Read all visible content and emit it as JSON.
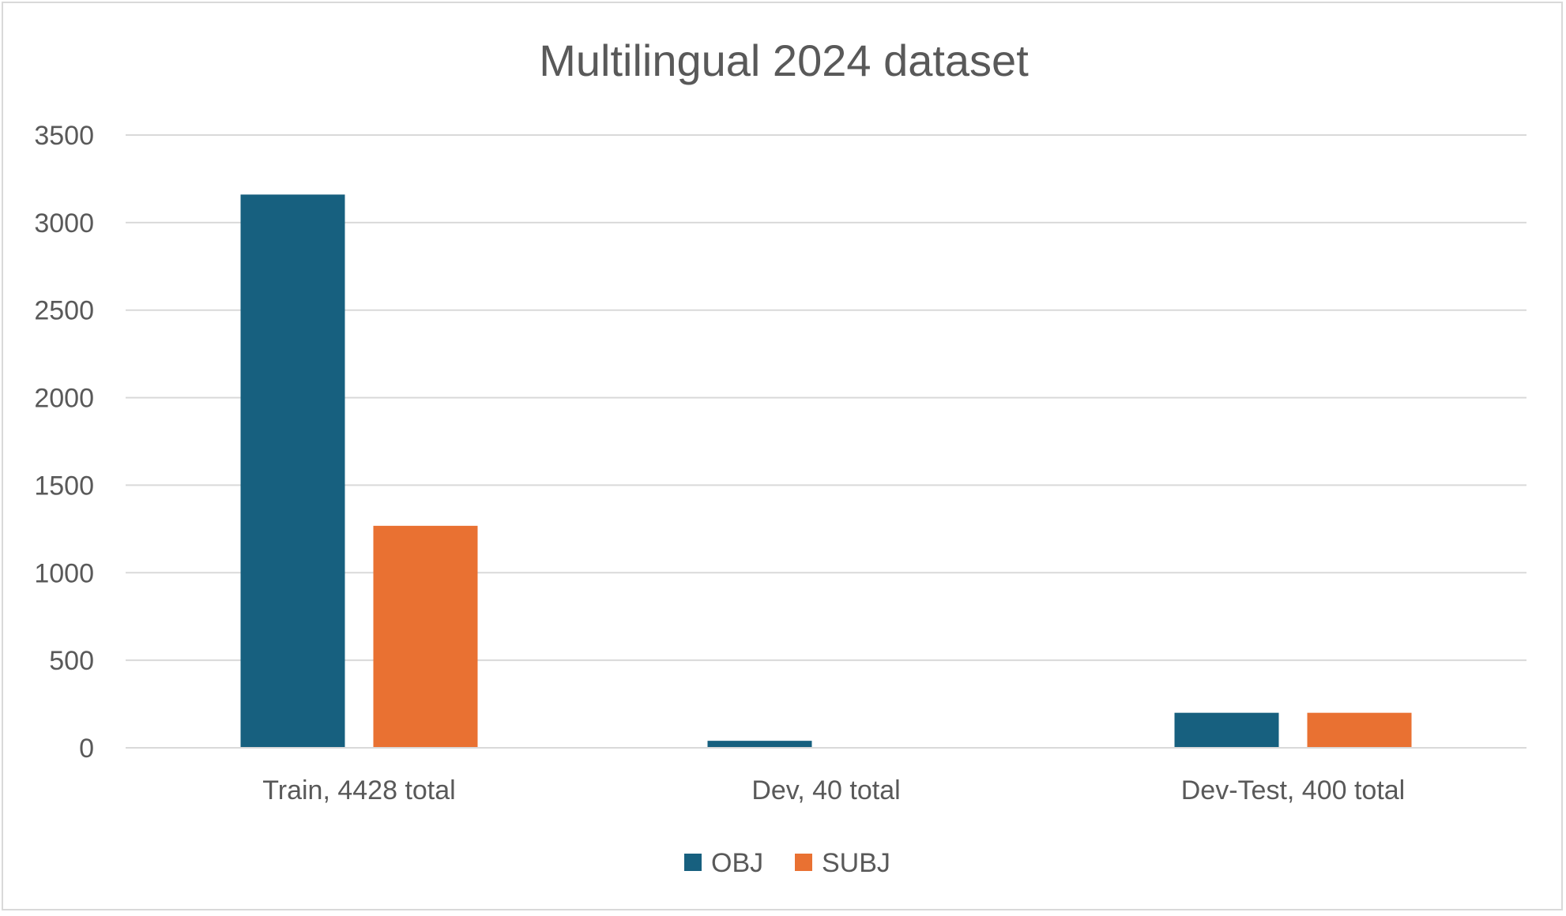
{
  "chart_data": {
    "type": "bar",
    "title": "Multilingual 2024 dataset",
    "xlabel": "",
    "ylabel": "",
    "categories": [
      "Train, 4428 total",
      "Dev, 40 total",
      "Dev-Test, 400 total"
    ],
    "series": [
      {
        "name": "OBJ",
        "values": [
          3160,
          40,
          200
        ],
        "color": "#17607f"
      },
      {
        "name": "SUBJ",
        "values": [
          1268,
          0,
          200
        ],
        "color": "#e97132"
      }
    ],
    "ylim": [
      0,
      3500
    ],
    "yticks": [
      0,
      500,
      1000,
      1500,
      2000,
      2500,
      3000,
      3500
    ],
    "grid": true,
    "legend_position": "bottom",
    "colors": {
      "grid": "#d9d9d9",
      "axis_text": "#595959",
      "border": "#d9d9d9"
    }
  }
}
